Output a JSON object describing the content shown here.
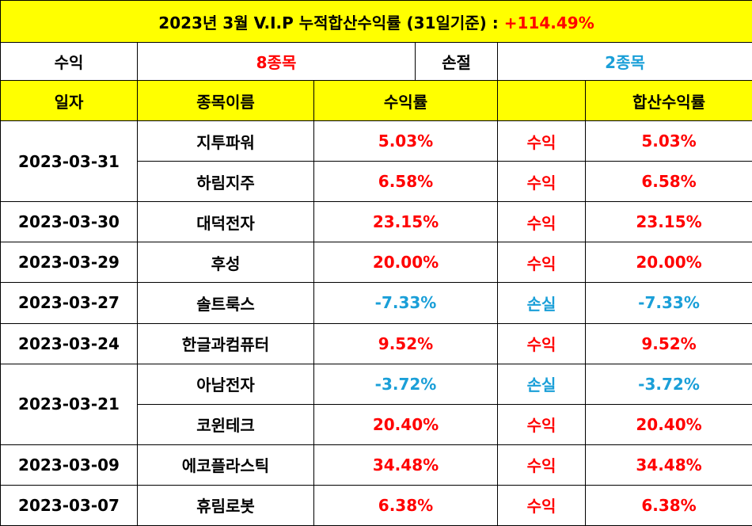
{
  "title": {
    "text": "2023년 3월 V.I.P 누적합산수익률 (31일기준)",
    "separator": ":",
    "value": "+114.49%"
  },
  "summary": {
    "profit_label": "수익",
    "profit_value": "8종목",
    "loss_label": "손절",
    "loss_value": "2종목"
  },
  "headers": {
    "date": "일자",
    "name": "종목이름",
    "rate": "수익률",
    "status": "",
    "cumulative": "합산수익률"
  },
  "rows": [
    {
      "date": "2023-03-31",
      "name": "지투파워",
      "rate": "5.03%",
      "status": "수익",
      "cumulative": "5.03%"
    },
    {
      "date": "",
      "name": "하림지주",
      "rate": "6.58%",
      "status": "수익",
      "cumulative": "6.58%"
    },
    {
      "date": "2023-03-30",
      "name": "대덕전자",
      "rate": "23.15%",
      "status": "수익",
      "cumulative": "23.15%"
    },
    {
      "date": "2023-03-29",
      "name": "후성",
      "rate": "20.00%",
      "status": "수익",
      "cumulative": "20.00%"
    },
    {
      "date": "2023-03-27",
      "name": "솔트룩스",
      "rate": "-7.33%",
      "status": "손실",
      "cumulative": "-7.33%"
    },
    {
      "date": "2023-03-24",
      "name": "한글과컴퓨터",
      "rate": "9.52%",
      "status": "수익",
      "cumulative": "9.52%"
    },
    {
      "date": "2023-03-21",
      "name": "아남전자",
      "rate": "-3.72%",
      "status": "손실",
      "cumulative": "-3.72%"
    },
    {
      "date": "",
      "name": "코윈테크",
      "rate": "20.40%",
      "status": "수익",
      "cumulative": "20.40%"
    },
    {
      "date": "2023-03-09",
      "name": "에코플라스틱",
      "rate": "34.48%",
      "status": "수익",
      "cumulative": "34.48%"
    },
    {
      "date": "2023-03-07",
      "name": "휴림로봇",
      "rate": "6.38%",
      "status": "수익",
      "cumulative": "6.38%"
    }
  ],
  "colors": {
    "header_bg": "#ffff00",
    "profit": "#ff0000",
    "loss": "#1a9fd8",
    "border": "#000000"
  }
}
